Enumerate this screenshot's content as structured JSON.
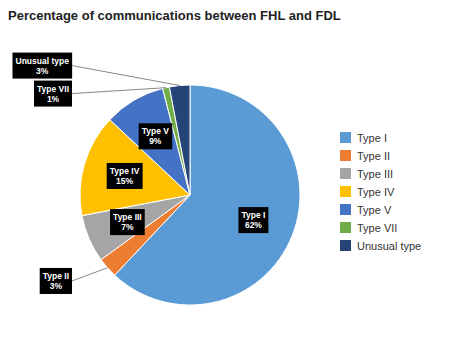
{
  "chart_data": {
    "type": "pie",
    "title": "Percentage of communications between FHL and FDL",
    "categories": [
      "Type I",
      "Type II",
      "Type III",
      "Type IV",
      "Type V",
      "Type VII",
      "Unusual type"
    ],
    "values": [
      62,
      3,
      7,
      15,
      9,
      1,
      3
    ],
    "value_labels": [
      "62%",
      "3%",
      "7%",
      "15%",
      "9%",
      "1%",
      "3%"
    ],
    "colors": [
      "#5B9BD5",
      "#ED7D31",
      "#A5A5A5",
      "#FFC000",
      "#4472C4",
      "#70AD47",
      "#264478"
    ],
    "data_labels": true,
    "legend": "right"
  }
}
